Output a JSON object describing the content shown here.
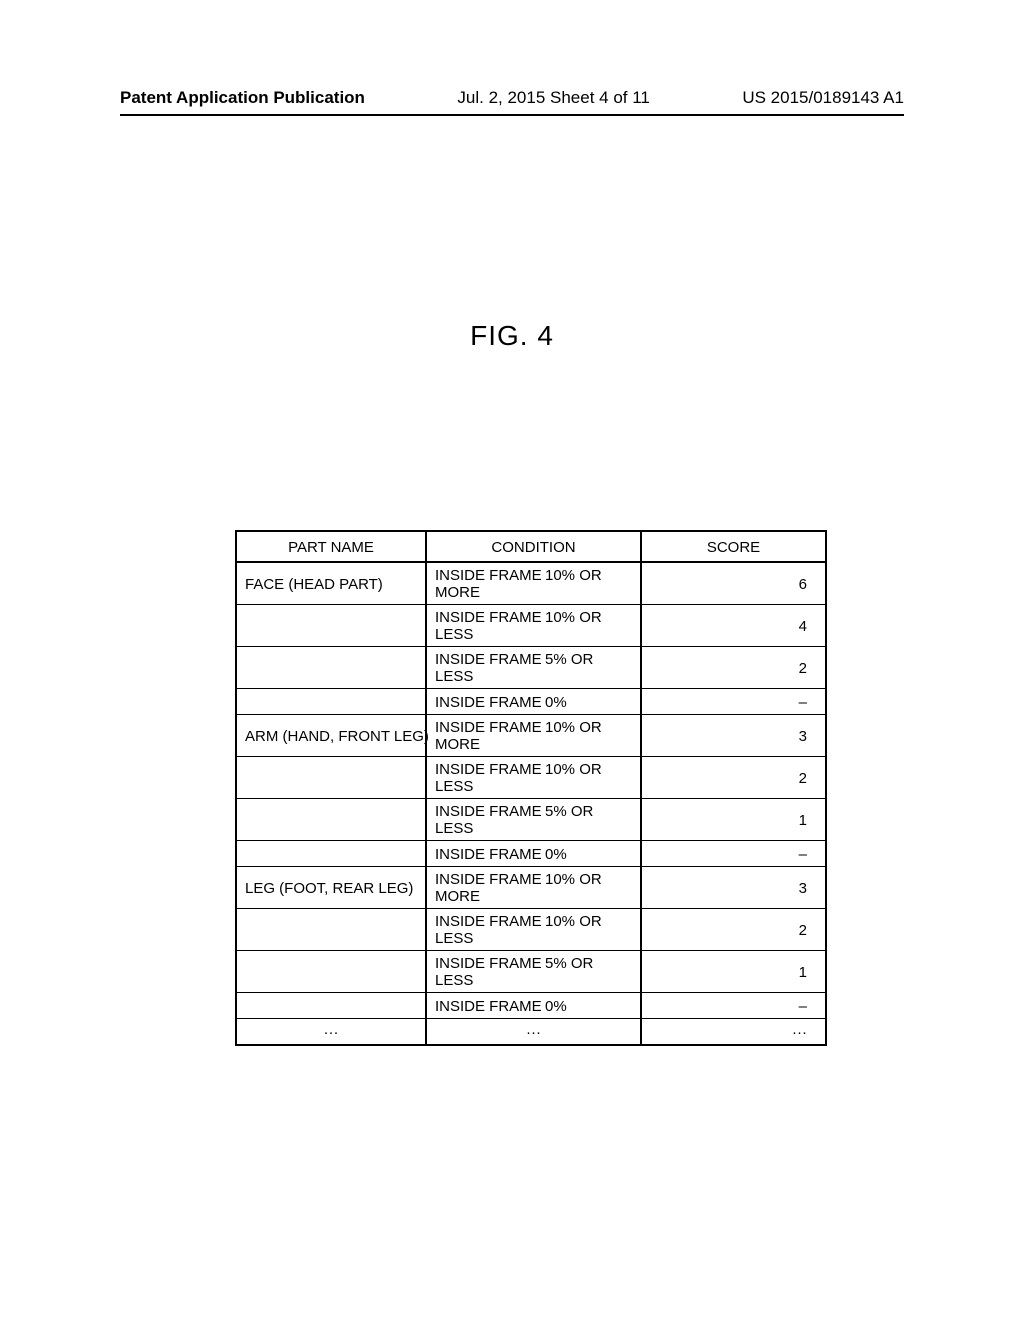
{
  "header": {
    "left": "Patent Application Publication",
    "center": "Jul. 2, 2015   Sheet 4 of 11",
    "right": "US 2015/0189143 A1"
  },
  "figure": {
    "title": "FIG. 4"
  },
  "table": {
    "columns": [
      "PART NAME",
      "CONDITION",
      "SCORE"
    ],
    "rows": [
      {
        "part": "FACE (HEAD PART)",
        "cond_l": "INSIDE FRAME",
        "cond_r": "10% OR MORE",
        "score": "6"
      },
      {
        "part": "",
        "cond_l": "INSIDE FRAME",
        "cond_r": "10% OR LESS",
        "score": "4"
      },
      {
        "part": "",
        "cond_l": "INSIDE FRAME",
        "cond_r": "5% OR LESS",
        "score": "2"
      },
      {
        "part": "",
        "cond_l": "INSIDE FRAME",
        "cond_r": "0%",
        "score": "–"
      },
      {
        "part": "ARM (HAND, FRONT LEG)",
        "cond_l": "INSIDE FRAME",
        "cond_r": "10% OR MORE",
        "score": "3"
      },
      {
        "part": "",
        "cond_l": "INSIDE FRAME",
        "cond_r": "10% OR LESS",
        "score": "2"
      },
      {
        "part": "",
        "cond_l": "INSIDE FRAME",
        "cond_r": "5% OR LESS",
        "score": "1"
      },
      {
        "part": "",
        "cond_l": "INSIDE FRAME",
        "cond_r": "0%",
        "score": "–"
      },
      {
        "part": "LEG (FOOT, REAR LEG)",
        "cond_l": "INSIDE FRAME",
        "cond_r": "10% OR MORE",
        "score": "3"
      },
      {
        "part": "",
        "cond_l": "INSIDE FRAME",
        "cond_r": "10% OR LESS",
        "score": "2"
      },
      {
        "part": "",
        "cond_l": "INSIDE FRAME",
        "cond_r": "5% OR LESS",
        "score": "1"
      },
      {
        "part": "",
        "cond_l": "INSIDE FRAME",
        "cond_r": "0%",
        "score": "–"
      }
    ],
    "ellipsis": {
      "part": "···",
      "cond": "···",
      "score": "···"
    }
  }
}
